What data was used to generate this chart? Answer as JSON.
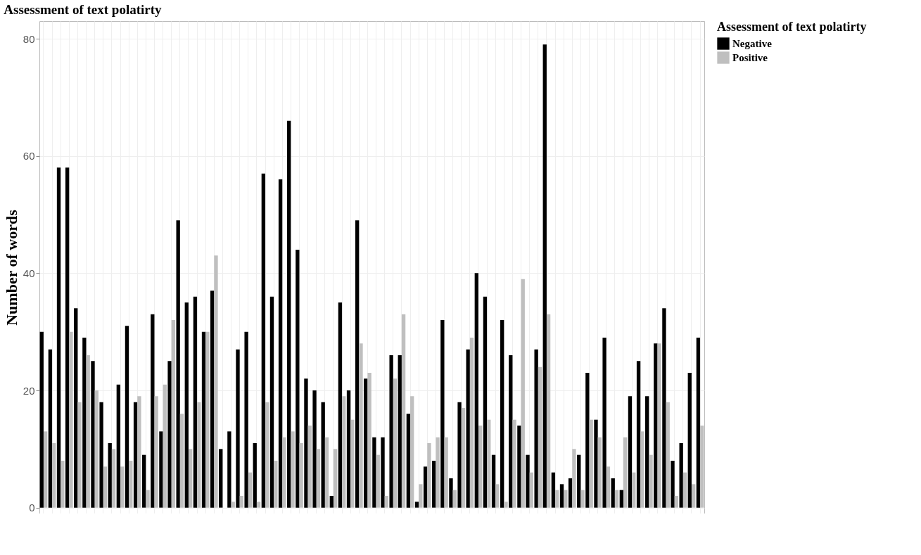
{
  "chart_data": {
    "type": "bar",
    "title": "Assessment of text polatirty",
    "ylabel": "Number of words",
    "legend_title": "Assessment of text polatirty",
    "categories": [
      null,
      null,
      null,
      null,
      null,
      null,
      null,
      null,
      null,
      null,
      null,
      null,
      null,
      null,
      null,
      null,
      null,
      null,
      null,
      null,
      null,
      null,
      null,
      null,
      null,
      null,
      null,
      null,
      null,
      null,
      null,
      null,
      null,
      null,
      null,
      null,
      null,
      null,
      null,
      null,
      null,
      null,
      null,
      null,
      null,
      null,
      null,
      null,
      null,
      null,
      null,
      null,
      null,
      null,
      null,
      null,
      null,
      null,
      null,
      null,
      null,
      null,
      null,
      null,
      null,
      null,
      null,
      null,
      null,
      null,
      null,
      null,
      null,
      null,
      null,
      null,
      null,
      null
    ],
    "series": [
      {
        "name": "Negative",
        "color": "#000000",
        "values": [
          30,
          27,
          58,
          58,
          34,
          29,
          25,
          18,
          11,
          21,
          31,
          18,
          9,
          33,
          13,
          25,
          49,
          35,
          36,
          30,
          37,
          10,
          13,
          27,
          30,
          11,
          57,
          36,
          56,
          66,
          44,
          22,
          20,
          18,
          2,
          35,
          20,
          49,
          22,
          12,
          12,
          26,
          26,
          16,
          1,
          7,
          8,
          32,
          5,
          18,
          27,
          40,
          36,
          9,
          32,
          26,
          14,
          9,
          27,
          79,
          6,
          4,
          5,
          9,
          23,
          15,
          29,
          5,
          3,
          19,
          25,
          19,
          28,
          34,
          8,
          11,
          23,
          29
        ]
      },
      {
        "name": "Positive",
        "color": "#bfbfbf",
        "values": [
          13,
          11,
          8,
          30,
          18,
          26,
          20,
          7,
          10,
          7,
          8,
          19,
          3,
          19,
          21,
          32,
          16,
          10,
          18,
          30,
          43,
          0,
          1,
          2,
          6,
          1,
          18,
          8,
          12,
          13,
          11,
          14,
          10,
          12,
          10,
          19,
          15,
          28,
          23,
          9,
          2,
          22,
          33,
          19,
          4,
          11,
          12,
          12,
          3,
          17,
          29,
          14,
          15,
          4,
          1,
          15,
          39,
          6,
          24,
          33,
          3,
          3,
          10,
          3,
          15,
          12,
          7,
          3,
          12,
          6,
          13,
          9,
          28,
          18,
          2,
          6,
          4,
          14
        ]
      }
    ],
    "ylim": [
      -1,
      83
    ],
    "yticks": [
      0,
      20,
      40,
      60,
      80
    ],
    "grid": true,
    "legend": "right",
    "tick_labels": "y"
  }
}
